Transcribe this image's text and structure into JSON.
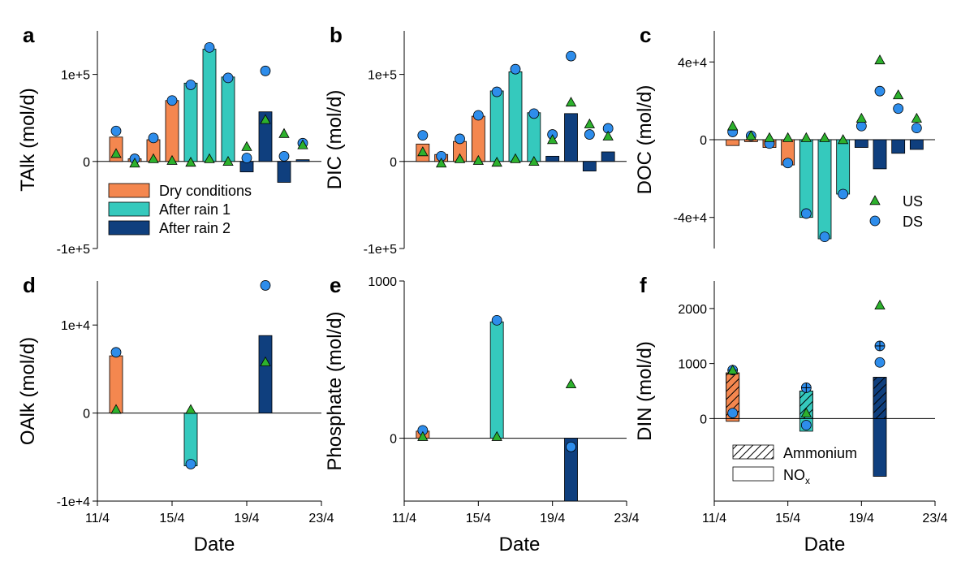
{
  "colors": {
    "dry": "#F4874F",
    "rain1": "#35C9BD",
    "rain2": "#0F3F7E",
    "us_marker": "#2DB12D",
    "ds_marker": "#2E8DEB",
    "outline": "#000000"
  },
  "shared": {
    "x_title": "Date",
    "x_ticks": [
      {
        "day": 11,
        "label": "11/4"
      },
      {
        "day": 15,
        "label": "15/4"
      },
      {
        "day": 19,
        "label": "19/4"
      },
      {
        "day": 23,
        "label": "23/4"
      }
    ],
    "bar_legend": [
      {
        "label": "Dry conditions",
        "category": "dry"
      },
      {
        "label": "After rain 1",
        "category": "rain1"
      },
      {
        "label": "After rain 2",
        "category": "rain2"
      }
    ],
    "marker_legend": [
      {
        "label": "US",
        "marker": "triangle"
      },
      {
        "label": "DS",
        "marker": "circle"
      }
    ],
    "din_legend": [
      {
        "label": "Ammonium",
        "pattern": "hatch"
      },
      {
        "label": "NO",
        "sub": "x",
        "pattern": "plain"
      }
    ]
  },
  "chart_data": [
    {
      "panel": "a",
      "type": "bar",
      "ylabel": "TAlk (mol/d)",
      "ylim": [
        -100000,
        150000
      ],
      "yticks": [
        {
          "v": -100000,
          "label": "-1e+5"
        },
        {
          "v": 0,
          "label": "0"
        },
        {
          "v": 100000,
          "label": "1e+5"
        }
      ],
      "bars": [
        {
          "day": 12,
          "cat": "dry",
          "value": 28000
        },
        {
          "day": 13,
          "cat": "dry",
          "value": 3000
        },
        {
          "day": 14,
          "cat": "dry",
          "value": 25000
        },
        {
          "day": 15,
          "cat": "dry",
          "value": 70000
        },
        {
          "day": 16,
          "cat": "rain1",
          "value": 90000
        },
        {
          "day": 17,
          "cat": "rain1",
          "value": 129000
        },
        {
          "day": 18,
          "cat": "rain1",
          "value": 97000
        },
        {
          "day": 19,
          "cat": "rain2",
          "value": -12000
        },
        {
          "day": 20,
          "cat": "rain2",
          "value": 57000
        },
        {
          "day": 21,
          "cat": "rain2",
          "value": -24000
        },
        {
          "day": 22,
          "cat": "rain2",
          "value": 2000
        }
      ],
      "us": [
        [
          12,
          9000
        ],
        [
          13,
          -2000
        ],
        [
          14,
          3000
        ],
        [
          15,
          1000
        ],
        [
          16,
          -1000
        ],
        [
          17,
          3000
        ],
        [
          18,
          0
        ],
        [
          19,
          17000
        ],
        [
          20,
          48000
        ],
        [
          21,
          32000
        ],
        [
          22,
          19000
        ]
      ],
      "ds": [
        [
          12,
          35000
        ],
        [
          13,
          3000
        ],
        [
          14,
          27000
        ],
        [
          15,
          70000
        ],
        [
          16,
          88000
        ],
        [
          17,
          131000
        ],
        [
          18,
          96000
        ],
        [
          19,
          4000
        ],
        [
          20,
          104000
        ],
        [
          21,
          6000
        ],
        [
          22,
          21000
        ]
      ],
      "legend": "bars"
    },
    {
      "panel": "b",
      "type": "bar",
      "ylabel": "DIC (mol/d)",
      "ylim": [
        -100000,
        150000
      ],
      "yticks": [
        {
          "v": -100000,
          "label": "-1e+5"
        },
        {
          "v": 0,
          "label": "0"
        },
        {
          "v": 100000,
          "label": "1e+5"
        }
      ],
      "bars": [
        {
          "day": 12,
          "cat": "dry",
          "value": 20000
        },
        {
          "day": 13,
          "cat": "dry",
          "value": 8000
        },
        {
          "day": 14,
          "cat": "dry",
          "value": 23000
        },
        {
          "day": 15,
          "cat": "dry",
          "value": 52000
        },
        {
          "day": 16,
          "cat": "rain1",
          "value": 81000
        },
        {
          "day": 17,
          "cat": "rain1",
          "value": 103000
        },
        {
          "day": 18,
          "cat": "rain1",
          "value": 56000
        },
        {
          "day": 19,
          "cat": "rain2",
          "value": 6000
        },
        {
          "day": 20,
          "cat": "rain2",
          "value": 55000
        },
        {
          "day": 21,
          "cat": "rain2",
          "value": -11000
        },
        {
          "day": 22,
          "cat": "rain2",
          "value": 11000
        }
      ],
      "us": [
        [
          12,
          11000
        ],
        [
          13,
          -2000
        ],
        [
          14,
          3000
        ],
        [
          15,
          1000
        ],
        [
          16,
          -1000
        ],
        [
          17,
          3000
        ],
        [
          18,
          0
        ],
        [
          19,
          25000
        ],
        [
          20,
          68000
        ],
        [
          21,
          43000
        ],
        [
          22,
          29000
        ]
      ],
      "ds": [
        [
          12,
          30000
        ],
        [
          13,
          6000
        ],
        [
          14,
          26000
        ],
        [
          15,
          53000
        ],
        [
          16,
          80000
        ],
        [
          17,
          106000
        ],
        [
          18,
          55000
        ],
        [
          19,
          31000
        ],
        [
          20,
          121000
        ],
        [
          21,
          31000
        ],
        [
          22,
          38000
        ]
      ],
      "legend": "none"
    },
    {
      "panel": "c",
      "type": "bar",
      "ylabel": "DOC (mol/d)",
      "ylim": [
        -56000,
        56000
      ],
      "yticks": [
        {
          "v": -40000,
          "label": "-4e+4"
        },
        {
          "v": 0,
          "label": "0"
        },
        {
          "v": 40000,
          "label": "4e+4"
        }
      ],
      "bars": [
        {
          "day": 12,
          "cat": "dry",
          "value": -3000
        },
        {
          "day": 13,
          "cat": "dry",
          "value": -1000
        },
        {
          "day": 14,
          "cat": "dry",
          "value": -4000
        },
        {
          "day": 15,
          "cat": "dry",
          "value": -13000
        },
        {
          "day": 16,
          "cat": "rain1",
          "value": -40000
        },
        {
          "day": 17,
          "cat": "rain1",
          "value": -51000
        },
        {
          "day": 18,
          "cat": "rain1",
          "value": -28000
        },
        {
          "day": 19,
          "cat": "rain2",
          "value": -4000
        },
        {
          "day": 20,
          "cat": "rain2",
          "value": -15000
        },
        {
          "day": 21,
          "cat": "rain2",
          "value": -7000
        },
        {
          "day": 22,
          "cat": "rain2",
          "value": -5000
        }
      ],
      "us": [
        [
          12,
          7000
        ],
        [
          13,
          2000
        ],
        [
          14,
          1000
        ],
        [
          15,
          1000
        ],
        [
          16,
          1000
        ],
        [
          17,
          1000
        ],
        [
          18,
          0
        ],
        [
          19,
          11000
        ],
        [
          20,
          41000
        ],
        [
          21,
          23000
        ],
        [
          22,
          11000
        ]
      ],
      "ds": [
        [
          12,
          4000
        ],
        [
          13,
          2000
        ],
        [
          14,
          -2000
        ],
        [
          15,
          -12000
        ],
        [
          16,
          -38000
        ],
        [
          17,
          -50000
        ],
        [
          18,
          -28000
        ],
        [
          19,
          7000
        ],
        [
          20,
          25000
        ],
        [
          21,
          16000
        ],
        [
          22,
          6000
        ]
      ],
      "legend": "markers"
    },
    {
      "panel": "d",
      "type": "bar",
      "ylabel": "OAlk (mol/d)",
      "ylim": [
        -10000,
        15000
      ],
      "yticks": [
        {
          "v": -10000,
          "label": "-1e+4"
        },
        {
          "v": 0,
          "label": "0"
        },
        {
          "v": 10000,
          "label": "1e+4"
        }
      ],
      "bars": [
        {
          "day": 12,
          "cat": "dry",
          "value": 6500
        },
        {
          "day": 16,
          "cat": "rain1",
          "value": -6000
        },
        {
          "day": 20,
          "cat": "rain2",
          "value": 8800
        }
      ],
      "us": [
        [
          12,
          400
        ],
        [
          16,
          400
        ],
        [
          20,
          5800
        ]
      ],
      "ds": [
        [
          12,
          6900
        ],
        [
          16,
          -5800
        ],
        [
          20,
          14500
        ]
      ],
      "legend": "none"
    },
    {
      "panel": "e",
      "type": "bar",
      "ylabel": "Phosphate (mol/d)",
      "ylim": [
        -400,
        1000
      ],
      "yticks": [
        {
          "v": 0,
          "label": "0"
        },
        {
          "v": 1000,
          "label": "1000"
        }
      ],
      "bars": [
        {
          "day": 12,
          "cat": "dry",
          "value": 45
        },
        {
          "day": 16,
          "cat": "rain1",
          "value": 740
        },
        {
          "day": 20,
          "cat": "rain2",
          "value": -400
        }
      ],
      "us": [
        [
          12,
          10
        ],
        [
          16,
          10
        ],
        [
          20,
          345
        ]
      ],
      "ds": [
        [
          12,
          50
        ],
        [
          16,
          750
        ],
        [
          20,
          -55
        ]
      ],
      "legend": "none"
    },
    {
      "panel": "f",
      "type": "bar",
      "ylabel": "DIN (mol/d)",
      "ylim": [
        -1500,
        2500
      ],
      "yticks": [
        {
          "v": 0,
          "label": "0"
        },
        {
          "v": 1000,
          "label": "1000"
        },
        {
          "v": 2000,
          "label": "2000"
        }
      ],
      "bars": [
        {
          "day": 12,
          "cat": "dry",
          "nox": -50,
          "ammonium": 830
        },
        {
          "day": 16,
          "cat": "rain1",
          "nox": -230,
          "ammonium": 500
        },
        {
          "day": 20,
          "cat": "rain2",
          "nox": -1050,
          "ammonium": 750
        }
      ],
      "us": [
        [
          12,
          880
        ],
        [
          16,
          100
        ],
        [
          20,
          2060
        ]
      ],
      "ds": [
        [
          12,
          100
        ],
        [
          16,
          -120
        ],
        [
          20,
          1020
        ]
      ],
      "us_plus": [
        [
          12,
          880
        ],
        [
          16,
          560
        ],
        [
          20,
          1320
        ]
      ],
      "ds_plus": [
        [
          12,
          880
        ],
        [
          16,
          560
        ],
        [
          20,
          1320
        ]
      ],
      "legend": "din"
    }
  ]
}
